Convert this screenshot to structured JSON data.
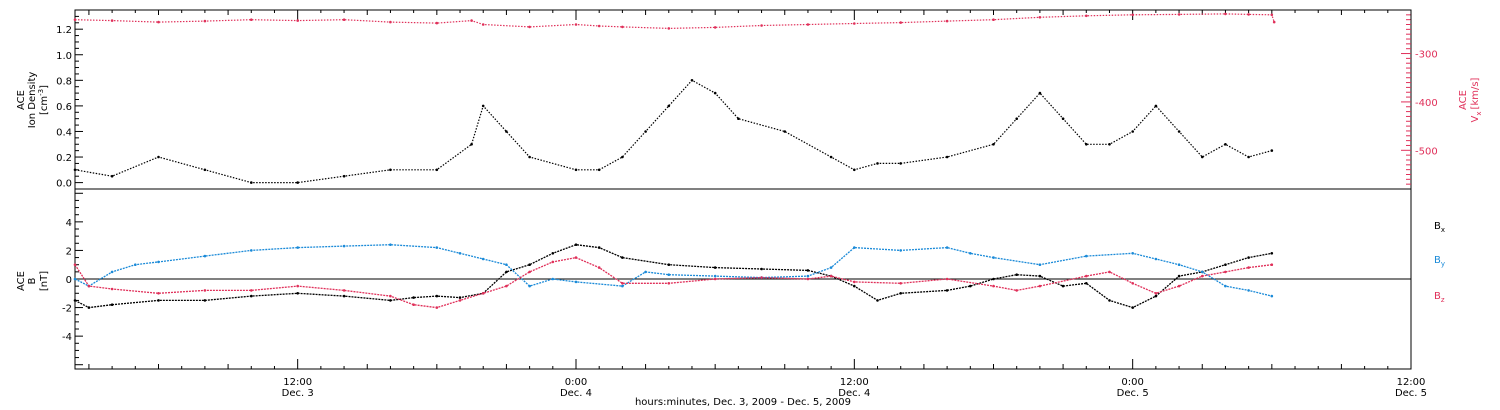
{
  "colors": {
    "black": "#000000",
    "pink": "#e0305a",
    "blue": "#1a8ad8"
  },
  "time_axis": {
    "title": "hours:minutes, Dec.  3, 2009 - Dec.  5, 2009",
    "ticks": [
      {
        "time": "12:00",
        "day": "Dec. 3",
        "hours": 12
      },
      {
        "time": "0:00",
        "day": "Dec. 4",
        "hours": 24
      },
      {
        "time": "12:00",
        "day": "Dec. 4",
        "hours": 36
      },
      {
        "time": "0:00",
        "day": "Dec. 5",
        "hours": 48
      },
      {
        "time": "12:00",
        "day": "Dec. 5",
        "hours": 60
      }
    ],
    "range_hours": [
      2.4,
      60
    ]
  },
  "panel1": {
    "left_label_line1": "ACE",
    "left_label_line2": "Ion Density",
    "left_unit_base": "[cm",
    "left_unit_exp": "-3",
    "left_unit_close": "]",
    "right_label_line1": "ACE",
    "right_sym": "V",
    "right_sub": "x",
    "right_unit": "[km/s]"
  },
  "panel2": {
    "label_line1": "ACE",
    "label_sym": "B",
    "label_unit": "[nT]",
    "legend": [
      {
        "sym": "B",
        "sub": "x",
        "color": "#000000"
      },
      {
        "sym": "B",
        "sub": "y",
        "color": "#1a8ad8"
      },
      {
        "sym": "B",
        "sub": "z",
        "color": "#e0305a"
      }
    ]
  },
  "chart_data": [
    {
      "type": "scatter",
      "title": "",
      "xlabel": "hours:minutes, Dec.  3, 2009 - Dec.  5, 2009",
      "xunit": "hours since Dec. 3 00:00",
      "xlim": [
        2.4,
        60
      ],
      "y_left": {
        "label": "ACE Ion Density [cm-3]",
        "lim": [
          -0.05,
          1.35
        ],
        "ticks": [
          "0.0",
          "0.2",
          "0.4",
          "0.6",
          "0.8",
          "1.0",
          "1.2"
        ]
      },
      "y_right": {
        "label": "ACE Vx [km/s]",
        "lim": [
          -580,
          -210
        ],
        "ticks": [
          "-300",
          "-400",
          "-500"
        ]
      },
      "series": [
        {
          "name": "Ion Density",
          "axis": "left",
          "color": "#000000",
          "points": [
            [
              2.4,
              0.1
            ],
            [
              4,
              0.05
            ],
            [
              6,
              0.2
            ],
            [
              8,
              0.1
            ],
            [
              10,
              0.0
            ],
            [
              12,
              0.0
            ],
            [
              14,
              0.05
            ],
            [
              16,
              0.1
            ],
            [
              18,
              0.1
            ],
            [
              19.5,
              0.3
            ],
            [
              20,
              0.6
            ],
            [
              21,
              0.4
            ],
            [
              22,
              0.2
            ],
            [
              24,
              0.1
            ],
            [
              25,
              0.1
            ],
            [
              26,
              0.2
            ],
            [
              27,
              0.4
            ],
            [
              28,
              0.6
            ],
            [
              29,
              0.8
            ],
            [
              30,
              0.7
            ],
            [
              31,
              0.5
            ],
            [
              33,
              0.4
            ],
            [
              35,
              0.2
            ],
            [
              36,
              0.1
            ],
            [
              37,
              0.15
            ],
            [
              38,
              0.15
            ],
            [
              40,
              0.2
            ],
            [
              42,
              0.3
            ],
            [
              43,
              0.5
            ],
            [
              44,
              0.7
            ],
            [
              45,
              0.5
            ],
            [
              46,
              0.3
            ],
            [
              47,
              0.3
            ],
            [
              48,
              0.4
            ],
            [
              49,
              0.6
            ],
            [
              50,
              0.4
            ],
            [
              51,
              0.2
            ],
            [
              52,
              0.3
            ],
            [
              53,
              0.2
            ],
            [
              54,
              0.25
            ]
          ]
        },
        {
          "name": "Vx",
          "axis": "right",
          "color": "#e0305a",
          "points": [
            [
              2.4,
              -230
            ],
            [
              4,
              -232
            ],
            [
              6,
              -235
            ],
            [
              8,
              -233
            ],
            [
              10,
              -230
            ],
            [
              12,
              -232
            ],
            [
              14,
              -230
            ],
            [
              16,
              -235
            ],
            [
              18,
              -237
            ],
            [
              19.5,
              -232
            ],
            [
              20,
              -240
            ],
            [
              22,
              -245
            ],
            [
              24,
              -240
            ],
            [
              25,
              -243
            ],
            [
              26,
              -245
            ],
            [
              28,
              -248
            ],
            [
              30,
              -246
            ],
            [
              32,
              -242
            ],
            [
              34,
              -240
            ],
            [
              36,
              -238
            ],
            [
              38,
              -236
            ],
            [
              40,
              -233
            ],
            [
              42,
              -230
            ],
            [
              44,
              -225
            ],
            [
              46,
              -222
            ],
            [
              48,
              -220
            ],
            [
              50,
              -219
            ],
            [
              52,
              -218
            ],
            [
              53,
              -219
            ],
            [
              54,
              -220
            ],
            [
              54.1,
              -235
            ]
          ]
        }
      ]
    },
    {
      "type": "scatter",
      "title": "",
      "xlabel": "hours:minutes, Dec.  3, 2009 - Dec.  5, 2009",
      "xunit": "hours since Dec. 3 00:00",
      "xlim": [
        2.4,
        60
      ],
      "ylim": [
        -6.3,
        6.3
      ],
      "y_label": "ACE B [nT]",
      "y_ticks": [
        "-4",
        "-2",
        "0",
        "2",
        "4"
      ],
      "series": [
        {
          "name": "Bx",
          "color": "#000000",
          "points": [
            [
              2.4,
              -1.5
            ],
            [
              3,
              -2.0
            ],
            [
              4,
              -1.8
            ],
            [
              6,
              -1.5
            ],
            [
              8,
              -1.5
            ],
            [
              10,
              -1.2
            ],
            [
              12,
              -1.0
            ],
            [
              14,
              -1.2
            ],
            [
              16,
              -1.5
            ],
            [
              17,
              -1.3
            ],
            [
              18,
              -1.2
            ],
            [
              19,
              -1.3
            ],
            [
              20,
              -1.0
            ],
            [
              21,
              0.5
            ],
            [
              22,
              1.0
            ],
            [
              23,
              1.8
            ],
            [
              24,
              2.4
            ],
            [
              25,
              2.2
            ],
            [
              26,
              1.5
            ],
            [
              28,
              1.0
            ],
            [
              30,
              0.8
            ],
            [
              32,
              0.7
            ],
            [
              34,
              0.6
            ],
            [
              35,
              0.2
            ],
            [
              36,
              -0.5
            ],
            [
              37,
              -1.5
            ],
            [
              38,
              -1.0
            ],
            [
              40,
              -0.8
            ],
            [
              41,
              -0.5
            ],
            [
              42,
              0.0
            ],
            [
              43,
              0.3
            ],
            [
              44,
              0.2
            ],
            [
              45,
              -0.5
            ],
            [
              46,
              -0.3
            ],
            [
              47,
              -1.5
            ],
            [
              48,
              -2.0
            ],
            [
              49,
              -1.2
            ],
            [
              50,
              0.2
            ],
            [
              51,
              0.5
            ],
            [
              52,
              1.0
            ],
            [
              53,
              1.5
            ],
            [
              54,
              1.8
            ]
          ]
        },
        {
          "name": "By",
          "color": "#1a8ad8",
          "points": [
            [
              2.4,
              0.0
            ],
            [
              3,
              -0.5
            ],
            [
              4,
              0.5
            ],
            [
              5,
              1.0
            ],
            [
              6,
              1.2
            ],
            [
              8,
              1.6
            ],
            [
              10,
              2.0
            ],
            [
              12,
              2.2
            ],
            [
              14,
              2.3
            ],
            [
              16,
              2.4
            ],
            [
              18,
              2.2
            ],
            [
              19,
              1.8
            ],
            [
              20,
              1.4
            ],
            [
              21,
              1.0
            ],
            [
              22,
              -0.5
            ],
            [
              23,
              0.0
            ],
            [
              24,
              -0.2
            ],
            [
              26,
              -0.5
            ],
            [
              27,
              0.5
            ],
            [
              28,
              0.3
            ],
            [
              30,
              0.2
            ],
            [
              32,
              0.1
            ],
            [
              34,
              0.2
            ],
            [
              35,
              0.8
            ],
            [
              36,
              2.2
            ],
            [
              38,
              2.0
            ],
            [
              40,
              2.2
            ],
            [
              41,
              1.8
            ],
            [
              42,
              1.5
            ],
            [
              44,
              1.0
            ],
            [
              46,
              1.6
            ],
            [
              48,
              1.8
            ],
            [
              49,
              1.4
            ],
            [
              50,
              1.0
            ],
            [
              51,
              0.5
            ],
            [
              52,
              -0.5
            ],
            [
              53,
              -0.8
            ],
            [
              54,
              -1.2
            ]
          ]
        },
        {
          "name": "Bz",
          "color": "#e0305a",
          "points": [
            [
              2.4,
              1.0
            ],
            [
              3,
              -0.5
            ],
            [
              4,
              -0.7
            ],
            [
              6,
              -1.0
            ],
            [
              8,
              -0.8
            ],
            [
              10,
              -0.8
            ],
            [
              12,
              -0.5
            ],
            [
              14,
              -0.8
            ],
            [
              16,
              -1.2
            ],
            [
              17,
              -1.8
            ],
            [
              18,
              -2.0
            ],
            [
              19,
              -1.5
            ],
            [
              20,
              -1.0
            ],
            [
              21,
              -0.5
            ],
            [
              22,
              0.5
            ],
            [
              23,
              1.2
            ],
            [
              24,
              1.5
            ],
            [
              25,
              0.8
            ],
            [
              26,
              -0.3
            ],
            [
              28,
              -0.3
            ],
            [
              30,
              0.0
            ],
            [
              32,
              0.1
            ],
            [
              34,
              0.0
            ],
            [
              35,
              0.2
            ],
            [
              36,
              -0.2
            ],
            [
              38,
              -0.3
            ],
            [
              40,
              0.0
            ],
            [
              42,
              -0.5
            ],
            [
              43,
              -0.8
            ],
            [
              44,
              -0.5
            ],
            [
              46,
              0.2
            ],
            [
              47,
              0.5
            ],
            [
              48,
              -0.3
            ],
            [
              49,
              -1.0
            ],
            [
              50,
              -0.5
            ],
            [
              51,
              0.2
            ],
            [
              52,
              0.5
            ],
            [
              53,
              0.8
            ],
            [
              54,
              1.0
            ]
          ]
        }
      ]
    }
  ]
}
